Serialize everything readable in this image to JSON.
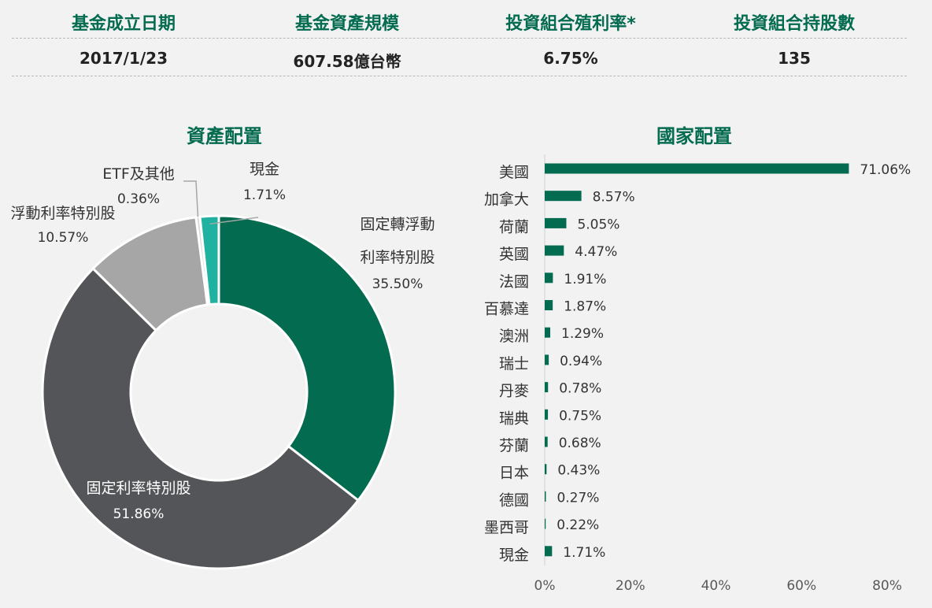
{
  "stats": [
    {
      "label": "基金成立日期",
      "value": "2017/1/23"
    },
    {
      "label": "基金資產規模",
      "value": "607.58億台幣"
    },
    {
      "label": "投資組合殖利率*",
      "value": "6.75%"
    },
    {
      "label": "投資組合持股數",
      "value": "135"
    }
  ],
  "colors": {
    "title": "#036b4f",
    "bar": "#036b4f",
    "slice_fixed_to_float": "#036b4f",
    "slice_fixed": "#545558",
    "slice_float": "#a6a6a6",
    "slice_etf": "#d9d9d9",
    "slice_cash": "#20b2a0"
  },
  "chart_data": [
    {
      "type": "pie",
      "title": "資產配置",
      "donut": true,
      "slices": [
        {
          "label_lines": [
            "固定轉浮動",
            "利率特別股"
          ],
          "value": 35.5,
          "value_label": "35.50%",
          "color": "#036b4f"
        },
        {
          "label_lines": [
            "固定利率特別股"
          ],
          "value": 51.86,
          "value_label": "51.86%",
          "color": "#545558"
        },
        {
          "label_lines": [
            "浮動利率特別股"
          ],
          "value": 10.57,
          "value_label": "10.57%",
          "color": "#a6a6a6"
        },
        {
          "label_lines": [
            "ETF及其他"
          ],
          "value": 0.36,
          "value_label": "0.36%",
          "color": "#d9d9d9"
        },
        {
          "label_lines": [
            "現金"
          ],
          "value": 1.71,
          "value_label": "1.71%",
          "color": "#20b2a0"
        }
      ]
    },
    {
      "type": "bar",
      "orientation": "horizontal",
      "title": "國家配置",
      "categories": [
        "美國",
        "加拿大",
        "荷蘭",
        "英國",
        "法國",
        "百慕達",
        "澳洲",
        "瑞士",
        "丹麥",
        "瑞典",
        "芬蘭",
        "日本",
        "德國",
        "墨西哥",
        "現金"
      ],
      "values": [
        71.06,
        8.57,
        5.05,
        4.47,
        1.91,
        1.87,
        1.29,
        0.94,
        0.78,
        0.75,
        0.68,
        0.43,
        0.27,
        0.22,
        1.71
      ],
      "value_labels": [
        "71.06%",
        "8.57%",
        "5.05%",
        "4.47%",
        "1.91%",
        "1.87%",
        "1.29%",
        "0.94%",
        "0.78%",
        "0.75%",
        "0.68%",
        "0.43%",
        "0.27%",
        "0.22%",
        "1.71%"
      ],
      "xlim": [
        0,
        80
      ],
      "xticks": [
        "0%",
        "20%",
        "40%",
        "60%",
        "80%"
      ],
      "grid": false
    }
  ]
}
